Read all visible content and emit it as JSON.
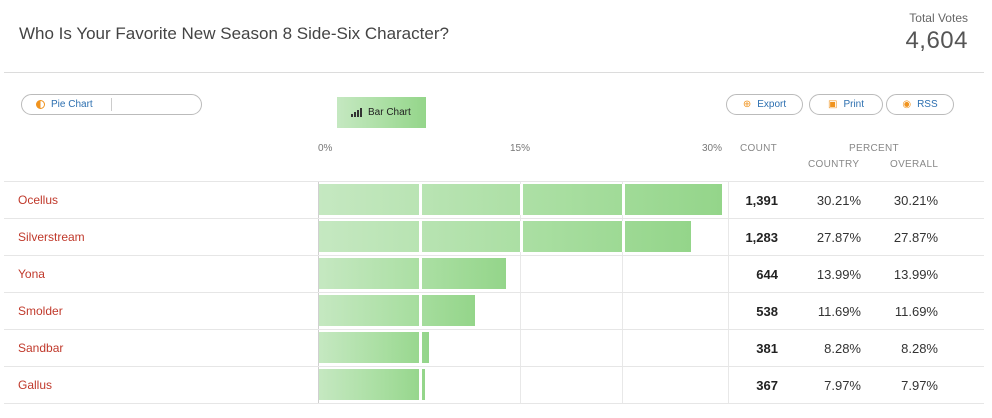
{
  "header": {
    "title": "Who Is Your Favorite New Season 8 Side-Six Character?",
    "total_votes_label": "Total Votes",
    "total_votes_value": "4,604"
  },
  "toolbar": {
    "pie_chart_label": "Pie Chart",
    "bar_chart_label": "Bar Chart",
    "export_label": "Export",
    "print_label": "Print",
    "rss_label": "RSS"
  },
  "table": {
    "ticks": [
      "0%",
      "15%",
      "30%"
    ],
    "count_header": "COUNT",
    "percent_header": "PERCENT",
    "country_header": "COUNTRY",
    "overall_header": "OVERALL",
    "rows": [
      {
        "label": "Ocellus",
        "count": "1,391",
        "country": "30.21%",
        "overall": "30.21%",
        "percent": 30.21
      },
      {
        "label": "Silverstream",
        "count": "1,283",
        "country": "27.87%",
        "overall": "27.87%",
        "percent": 27.87
      },
      {
        "label": "Yona",
        "count": "644",
        "country": "13.99%",
        "overall": "13.99%",
        "percent": 13.99
      },
      {
        "label": "Smolder",
        "count": "538",
        "country": "11.69%",
        "overall": "11.69%",
        "percent": 11.69
      },
      {
        "label": "Sandbar",
        "count": "381",
        "country": "8.28%",
        "overall": "8.28%",
        "percent": 8.28
      },
      {
        "label": "Gallus",
        "count": "367",
        "country": "7.97%",
        "overall": "7.97%",
        "percent": 7.97
      }
    ]
  },
  "colors": {
    "label_red": "#c0392b",
    "bar_green": "#a8dea0",
    "accent_orange": "#f0931e",
    "link_blue": "#2c6fb0"
  },
  "icons": {
    "pie": "pie-chart-icon",
    "bar": "bar-chart-icon",
    "export": "export-icon",
    "print": "print-icon",
    "rss": "rss-icon"
  }
}
